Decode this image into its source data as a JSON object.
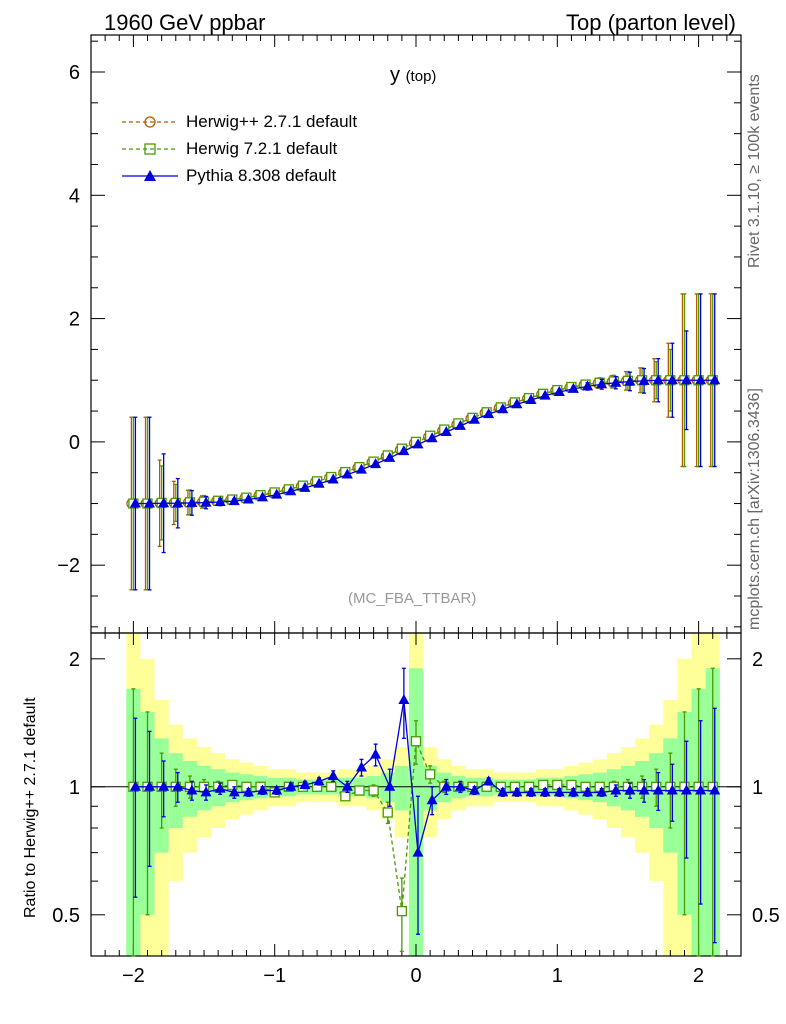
{
  "header": {
    "left_title": "1960 GeV ppbar",
    "right_title": "Top (parton level)"
  },
  "side_labels": {
    "rivet": "Rivet 3.1.10, ≥ 100k events",
    "mcplots": "mcplots.cern.ch [arXiv:1306.3436]"
  },
  "plot_title": {
    "main": "y",
    "sub": "(top)"
  },
  "analysis_tag": "(MC_FBA_TTBAR)",
  "ratio_ylabel": "Ratio to Herwig++ 2.7.1 default",
  "legend": [
    {
      "label": "Herwig++ 2.7.1 default",
      "color": "#b15a00",
      "marker": "circle",
      "dash": "dashed"
    },
    {
      "label": "Herwig 7.2.1 default",
      "color": "#4a9a00",
      "marker": "square",
      "dash": "dashed"
    },
    {
      "label": "Pythia 8.308 default",
      "color": "#0000dd",
      "marker": "triangle",
      "dash": "solid"
    }
  ],
  "chart_data": [
    {
      "type": "line",
      "title": "y (top)",
      "xlabel": "",
      "ylabel": "",
      "xlim": [
        -2.3,
        2.3
      ],
      "ylim": [
        -3.1,
        6.6
      ],
      "yticks": [
        -2,
        0,
        2,
        4,
        6
      ],
      "yticklabels": [
        "−2",
        "0",
        "2",
        "4",
        "6"
      ],
      "x": [
        -2.0,
        -1.9,
        -1.8,
        -1.7,
        -1.6,
        -1.5,
        -1.4,
        -1.3,
        -1.2,
        -1.1,
        -1.0,
        -0.9,
        -0.8,
        -0.7,
        -0.6,
        -0.5,
        -0.4,
        -0.3,
        -0.2,
        -0.1,
        0.0,
        0.1,
        0.2,
        0.3,
        0.4,
        0.5,
        0.6,
        0.7,
        0.8,
        0.9,
        1.0,
        1.1,
        1.2,
        1.3,
        1.4,
        1.5,
        1.6,
        1.7,
        1.8,
        1.9,
        2.0,
        2.1
      ],
      "series": [
        {
          "name": "Herwig++ 2.7.1 default",
          "values": [
            -1.0,
            -1.0,
            -0.995,
            -0.99,
            -0.985,
            -0.975,
            -0.96,
            -0.94,
            -0.91,
            -0.87,
            -0.83,
            -0.78,
            -0.72,
            -0.65,
            -0.58,
            -0.5,
            -0.42,
            -0.33,
            -0.24,
            -0.13,
            -0.02,
            0.08,
            0.18,
            0.28,
            0.38,
            0.47,
            0.55,
            0.63,
            0.7,
            0.77,
            0.83,
            0.88,
            0.92,
            0.95,
            0.975,
            0.99,
            1.0,
            1.0,
            1.0,
            1.0,
            1.0,
            1.0
          ],
          "errors": [
            1.4,
            1.4,
            0.7,
            0.35,
            0.2,
            0.1,
            0.06,
            0.04,
            0.03,
            0.02,
            0.015,
            0.01,
            0.01,
            0.01,
            0.01,
            0.01,
            0.01,
            0.01,
            0.01,
            0.01,
            0.01,
            0.01,
            0.01,
            0.01,
            0.01,
            0.01,
            0.01,
            0.01,
            0.015,
            0.02,
            0.03,
            0.04,
            0.06,
            0.08,
            0.1,
            0.15,
            0.2,
            0.35,
            0.6,
            1.4,
            1.4,
            1.4
          ]
        },
        {
          "name": "Herwig 7.2.1 default",
          "values": [
            -1.0,
            -1.0,
            -0.99,
            -0.99,
            -0.98,
            -0.97,
            -0.955,
            -0.935,
            -0.905,
            -0.865,
            -0.82,
            -0.77,
            -0.71,
            -0.64,
            -0.57,
            -0.49,
            -0.41,
            -0.32,
            -0.22,
            -0.11,
            0.0,
            0.1,
            0.2,
            0.3,
            0.39,
            0.48,
            0.56,
            0.64,
            0.71,
            0.78,
            0.84,
            0.89,
            0.93,
            0.96,
            0.98,
            0.99,
            1.0,
            1.0,
            1.0,
            1.0,
            1.0,
            1.0
          ],
          "errors": [
            1.4,
            1.4,
            0.6,
            0.3,
            0.2,
            0.1,
            0.06,
            0.04,
            0.03,
            0.02,
            0.015,
            0.01,
            0.01,
            0.01,
            0.01,
            0.01,
            0.01,
            0.01,
            0.01,
            0.01,
            0.01,
            0.01,
            0.01,
            0.01,
            0.01,
            0.01,
            0.01,
            0.01,
            0.015,
            0.02,
            0.03,
            0.04,
            0.06,
            0.08,
            0.1,
            0.15,
            0.2,
            0.3,
            0.5,
            1.4,
            1.4,
            1.4
          ]
        },
        {
          "name": "Pythia 8.308 default",
          "values": [
            -1.0,
            -1.0,
            -0.995,
            -0.995,
            -0.99,
            -0.985,
            -0.975,
            -0.96,
            -0.935,
            -0.9,
            -0.855,
            -0.8,
            -0.745,
            -0.68,
            -0.61,
            -0.53,
            -0.45,
            -0.36,
            -0.26,
            -0.15,
            -0.04,
            0.06,
            0.16,
            0.26,
            0.36,
            0.45,
            0.53,
            0.61,
            0.68,
            0.75,
            0.81,
            0.86,
            0.9,
            0.935,
            0.96,
            0.98,
            0.99,
            1.0,
            1.0,
            1.0,
            1.0,
            1.0
          ],
          "errors": [
            1.4,
            1.4,
            0.8,
            0.4,
            0.2,
            0.1,
            0.06,
            0.04,
            0.03,
            0.02,
            0.015,
            0.01,
            0.01,
            0.01,
            0.01,
            0.01,
            0.01,
            0.01,
            0.01,
            0.01,
            0.01,
            0.01,
            0.01,
            0.01,
            0.01,
            0.01,
            0.01,
            0.01,
            0.015,
            0.02,
            0.03,
            0.04,
            0.06,
            0.08,
            0.1,
            0.15,
            0.2,
            0.35,
            0.6,
            0.8,
            1.4,
            1.4
          ]
        }
      ]
    },
    {
      "type": "line",
      "title": "",
      "xlabel": "",
      "ylabel": "Ratio to Herwig++ 2.7.1 default",
      "xlim": [
        -2.3,
        2.3
      ],
      "ylim": [
        0.4,
        2.3
      ],
      "yscale": "log",
      "yticks": [
        0.5,
        1,
        2
      ],
      "yticklabels": [
        "0.5",
        "1",
        "2"
      ],
      "xticks": [
        -2,
        -1,
        0,
        1,
        2
      ],
      "xticklabels": [
        "−2",
        "−1",
        "0",
        "1",
        "2"
      ],
      "x": [
        -2.0,
        -1.9,
        -1.8,
        -1.7,
        -1.6,
        -1.5,
        -1.4,
        -1.3,
        -1.2,
        -1.1,
        -1.0,
        -0.9,
        -0.8,
        -0.7,
        -0.6,
        -0.5,
        -0.4,
        -0.3,
        -0.2,
        -0.1,
        0.0,
        0.1,
        0.2,
        0.3,
        0.4,
        0.5,
        0.6,
        0.7,
        0.8,
        0.9,
        1.0,
        1.1,
        1.2,
        1.3,
        1.4,
        1.5,
        1.6,
        1.7,
        1.8,
        1.9,
        2.0,
        2.1
      ],
      "band_uncertainty": [
        0.7,
        0.5,
        0.3,
        0.2,
        0.15,
        0.12,
        0.1,
        0.08,
        0.07,
        0.06,
        0.05,
        0.05,
        0.04,
        0.04,
        0.04,
        0.05,
        0.05,
        0.06,
        0.08,
        0.12,
        0.9,
        0.12,
        0.08,
        0.06,
        0.05,
        0.05,
        0.04,
        0.04,
        0.04,
        0.05,
        0.05,
        0.06,
        0.07,
        0.08,
        0.1,
        0.12,
        0.15,
        0.2,
        0.3,
        0.5,
        0.7,
        0.9
      ],
      "series": [
        {
          "name": "Herwig 7.2.1 default",
          "values": [
            1.0,
            1.0,
            1.0,
            1.0,
            1.0,
            1.0,
            1.0,
            1.01,
            1.0,
            1.0,
            0.97,
            1.0,
            1.0,
            1.0,
            1.0,
            0.95,
            0.98,
            0.98,
            0.87,
            0.51,
            1.28,
            1.07,
            1.0,
            1.0,
            1.0,
            1.0,
            1.0,
            1.0,
            1.0,
            1.01,
            1.01,
            1.01,
            1.0,
            1.0,
            1.0,
            1.0,
            1.0,
            1.0,
            1.0,
            1.0,
            1.0,
            1.0
          ],
          "errors": [
            0.7,
            0.5,
            0.2,
            0.1,
            0.06,
            0.04,
            0.03,
            0.02,
            0.02,
            0.02,
            0.02,
            0.02,
            0.02,
            0.02,
            0.02,
            0.02,
            0.02,
            0.03,
            0.05,
            0.1,
            0.15,
            0.05,
            0.03,
            0.02,
            0.02,
            0.02,
            0.02,
            0.02,
            0.02,
            0.02,
            0.02,
            0.02,
            0.02,
            0.02,
            0.03,
            0.04,
            0.06,
            0.1,
            0.2,
            0.5,
            0.7,
            0.9
          ]
        },
        {
          "name": "Pythia 8.308 default",
          "values": [
            1.0,
            1.0,
            1.0,
            1.0,
            0.98,
            0.97,
            0.99,
            0.97,
            0.97,
            0.98,
            0.98,
            1.0,
            1.01,
            1.03,
            1.06,
            1.0,
            1.11,
            1.19,
            1.0,
            1.6,
            0.7,
            0.93,
            1.0,
            1.0,
            0.98,
            1.03,
            0.97,
            0.97,
            0.97,
            0.97,
            0.97,
            0.97,
            0.97,
            0.97,
            0.98,
            0.98,
            0.98,
            0.98,
            0.98,
            0.98,
            0.98,
            0.98
          ],
          "errors": [
            0.45,
            0.35,
            0.15,
            0.08,
            0.05,
            0.04,
            0.03,
            0.03,
            0.02,
            0.02,
            0.02,
            0.02,
            0.02,
            0.02,
            0.03,
            0.03,
            0.05,
            0.07,
            0.1,
            0.3,
            0.25,
            0.07,
            0.04,
            0.03,
            0.02,
            0.02,
            0.02,
            0.02,
            0.02,
            0.02,
            0.02,
            0.02,
            0.02,
            0.02,
            0.03,
            0.04,
            0.06,
            0.1,
            0.15,
            0.3,
            0.45,
            0.55
          ]
        }
      ]
    }
  ]
}
